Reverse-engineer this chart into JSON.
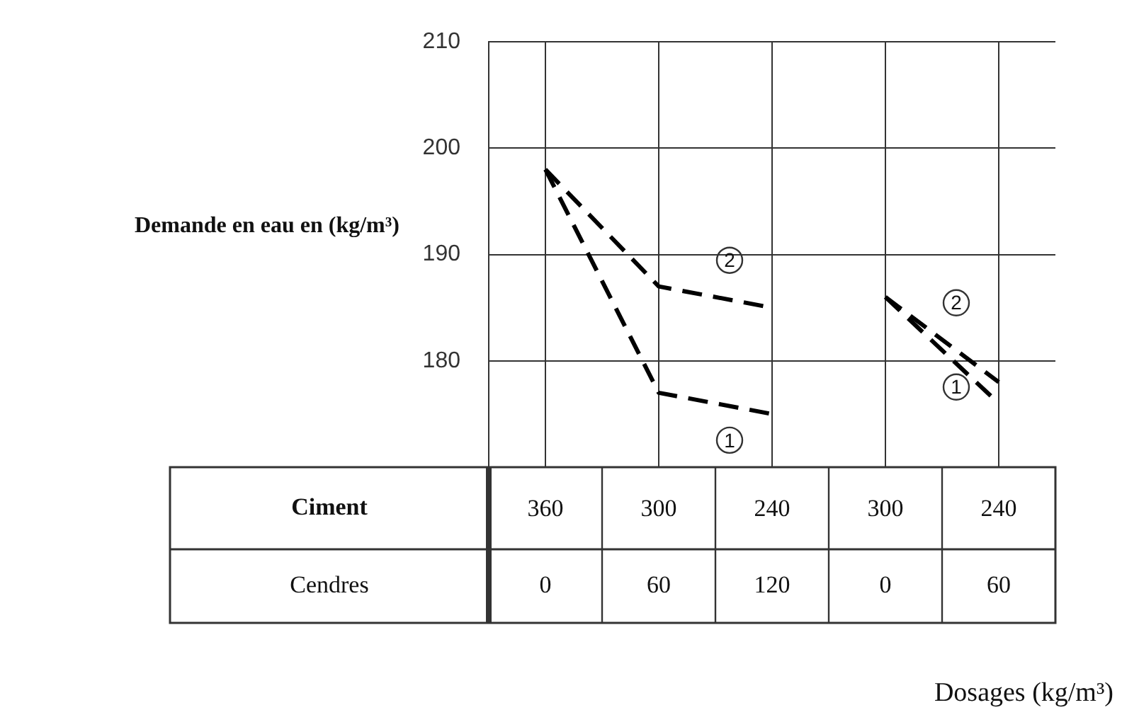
{
  "chart_data": {
    "type": "line",
    "ylabel": "Demande en eau en (kg/m³)",
    "categories": [
      "360",
      "300",
      "240",
      "300",
      "240"
    ],
    "series": [
      {
        "name": "1",
        "color": "#000000",
        "values": [
          198,
          177,
          175,
          null,
          null
        ]
      },
      {
        "name": "2",
        "color": "#000000",
        "values": [
          198,
          187,
          185,
          null,
          null
        ]
      },
      {
        "name": "1",
        "color": "#000000",
        "values": [
          null,
          null,
          null,
          186,
          176
        ]
      },
      {
        "name": "2",
        "color": "#000000",
        "values": [
          null,
          null,
          null,
          186,
          178
        ]
      }
    ],
    "ylim": [
      170,
      210
    ],
    "yticks": [
      180,
      190,
      200,
      210
    ],
    "grid": true,
    "legend": false,
    "marker": "none",
    "line_style": "dashed",
    "annotations": [
      "Ciment",
      "Cendres",
      "0",
      "60",
      "120",
      "0",
      "60",
      "Dosages (kg/m³)"
    ]
  }
}
